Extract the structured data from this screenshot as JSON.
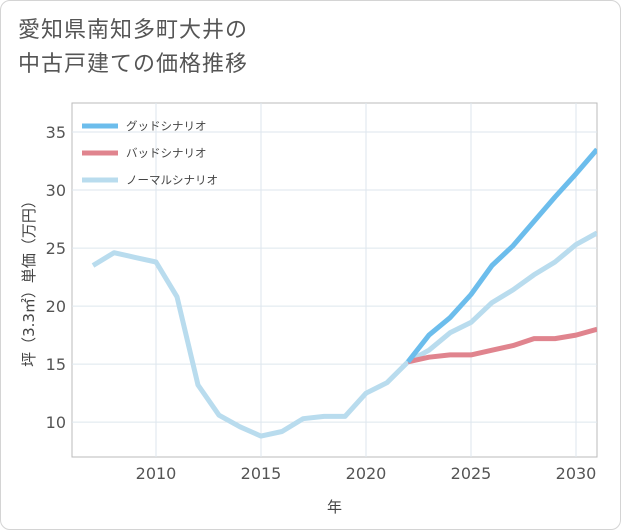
{
  "title_lines": [
    "愛知県南知多町大井の",
    "中古戸建ての価格推移"
  ],
  "chart_data": {
    "type": "line",
    "title": "愛知県南知多町大井の中古戸建ての価格推移",
    "xlabel": "年",
    "ylabel": "坪（3.3㎡）単価（万円）",
    "xlim": [
      2006,
      2031
    ],
    "ylim": [
      7,
      37.5
    ],
    "xticks": [
      2010,
      2015,
      2020,
      2025,
      2030
    ],
    "yticks": [
      10,
      15,
      20,
      25,
      30,
      35
    ],
    "legend_position": "top-left",
    "series": [
      {
        "name": "グッドシナリオ",
        "color": "#6cbdec",
        "x": [
          2022,
          2023,
          2024,
          2025,
          2026,
          2027,
          2028,
          2029,
          2030,
          2031
        ],
        "y": [
          15.2,
          17.5,
          19.0,
          21.0,
          23.5,
          25.2,
          27.3,
          29.4,
          31.4,
          33.5
        ]
      },
      {
        "name": "バッドシナリオ",
        "color": "#e0848e",
        "x": [
          2022,
          2023,
          2024,
          2025,
          2026,
          2027,
          2028,
          2029,
          2030,
          2031
        ],
        "y": [
          15.2,
          15.6,
          15.8,
          15.8,
          16.2,
          16.6,
          17.2,
          17.2,
          17.5,
          18.0
        ]
      },
      {
        "name": "ノーマルシナリオ",
        "color": "#b9dcee",
        "x": [
          2007,
          2008,
          2009,
          2010,
          2011,
          2012,
          2013,
          2014,
          2015,
          2016,
          2017,
          2018,
          2019,
          2020,
          2021,
          2022,
          2023,
          2024,
          2025,
          2026,
          2027,
          2028,
          2029,
          2030,
          2031
        ],
        "y": [
          23.5,
          24.6,
          24.2,
          23.8,
          20.8,
          13.2,
          10.6,
          9.6,
          8.8,
          9.2,
          10.3,
          10.5,
          10.5,
          12.5,
          13.4,
          15.2,
          16.2,
          17.7,
          18.6,
          20.3,
          21.4,
          22.7,
          23.8,
          25.3,
          26.3
        ]
      }
    ]
  }
}
